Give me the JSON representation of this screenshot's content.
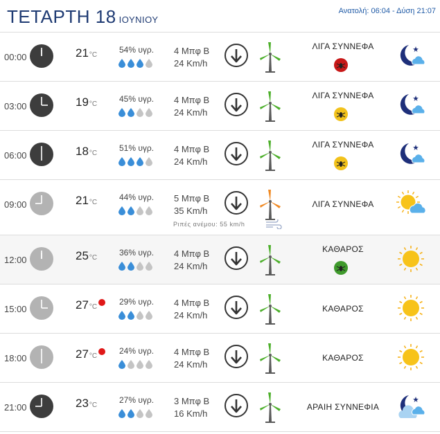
{
  "header": {
    "day": "ΤΕΤΑΡΤΗ 18",
    "month": "ΙΟΥΝΙΟΥ",
    "sun_info": "Ανατολή: 06:04  - Δύση 21:07"
  },
  "colors": {
    "title": "#1f3b73",
    "sun_info": "#1f5aa6",
    "hot_dot": "#e01818",
    "drop_filled": "#3a8ed8",
    "drop_empty": "#c4c4c4",
    "turbine_blades": "#4caf2a",
    "turbine_blades_strong": "#f08a24"
  },
  "rows": [
    {
      "time": "00:00",
      "clock": "night",
      "hour": 0,
      "temp": "21",
      "unit": "°C",
      "hot": false,
      "humidity": "54% υγρ.",
      "drops_filled": 3,
      "wind_force": "4 Μπφ Β",
      "wind_speed": "24 Km/h",
      "gust": "",
      "turbine": "green",
      "condition": "ΛΙΓΑ ΣΥΝΝΕΦΑ",
      "bug": "red",
      "weather_icon": "moon-cloud-icon"
    },
    {
      "time": "03:00",
      "clock": "night",
      "hour": 3,
      "temp": "19",
      "unit": "°C",
      "hot": false,
      "humidity": "45% υγρ.",
      "drops_filled": 2,
      "wind_force": "4 Μπφ Β",
      "wind_speed": "24 Km/h",
      "gust": "",
      "turbine": "green",
      "condition": "ΛΙΓΑ ΣΥΝΝΕΦΑ",
      "bug": "yellow",
      "weather_icon": "moon-cloud-icon"
    },
    {
      "time": "06:00",
      "clock": "night",
      "hour": 6,
      "temp": "18",
      "unit": "°C",
      "hot": false,
      "humidity": "51% υγρ.",
      "drops_filled": 3,
      "wind_force": "4 Μπφ Β",
      "wind_speed": "24 Km/h",
      "gust": "",
      "turbine": "green",
      "condition": "ΛΙΓΑ ΣΥΝΝΕΦΑ",
      "bug": "yellow",
      "weather_icon": "moon-cloud-icon"
    },
    {
      "time": "09:00",
      "clock": "day",
      "hour": 9,
      "temp": "21",
      "unit": "°C",
      "hot": false,
      "humidity": "44% υγρ.",
      "drops_filled": 2,
      "wind_force": "5 Μπφ Β",
      "wind_speed": "35 Km/h",
      "gust": "Ριπές ανέμου: 55 km/h",
      "turbine": "orange",
      "condition": "ΛΙΓΑ ΣΥΝΝΕΦΑ",
      "bug": "",
      "weather_icon": "sun-cloud-icon"
    },
    {
      "time": "12:00",
      "clock": "day",
      "hour": 12,
      "temp": "25",
      "unit": "°C",
      "hot": false,
      "humidity": "36% υγρ.",
      "drops_filled": 2,
      "wind_force": "4 Μπφ Β",
      "wind_speed": "24 Km/h",
      "gust": "",
      "turbine": "green",
      "condition": "ΚΑΘΑΡΟΣ",
      "bug": "green",
      "weather_icon": "sun-icon"
    },
    {
      "time": "15:00",
      "clock": "day",
      "hour": 15,
      "temp": "27",
      "unit": "°C",
      "hot": true,
      "humidity": "29% υγρ.",
      "drops_filled": 2,
      "wind_force": "4 Μπφ Β",
      "wind_speed": "24 Km/h",
      "gust": "",
      "turbine": "green",
      "condition": "ΚΑΘΑΡΟΣ",
      "bug": "",
      "weather_icon": "sun-icon"
    },
    {
      "time": "18:00",
      "clock": "day",
      "hour": 18,
      "temp": "27",
      "unit": "°C",
      "hot": true,
      "humidity": "24% υγρ.",
      "drops_filled": 1,
      "wind_force": "4 Μπφ Β",
      "wind_speed": "24 Km/h",
      "gust": "",
      "turbine": "green",
      "condition": "ΚΑΘΑΡΟΣ",
      "bug": "",
      "weather_icon": "sun-icon"
    },
    {
      "time": "21:00",
      "clock": "night",
      "hour": 21,
      "temp": "23",
      "unit": "°C",
      "hot": false,
      "humidity": "27% υγρ.",
      "drops_filled": 2,
      "wind_force": "3 Μπφ Β",
      "wind_speed": "16 Km/h",
      "gust": "",
      "turbine": "green",
      "condition": "ΑΡΑΙΗ ΣΥΝΝΕΦΙΑ",
      "bug": "",
      "weather_icon": "moon-cloud-scattered-icon"
    }
  ]
}
